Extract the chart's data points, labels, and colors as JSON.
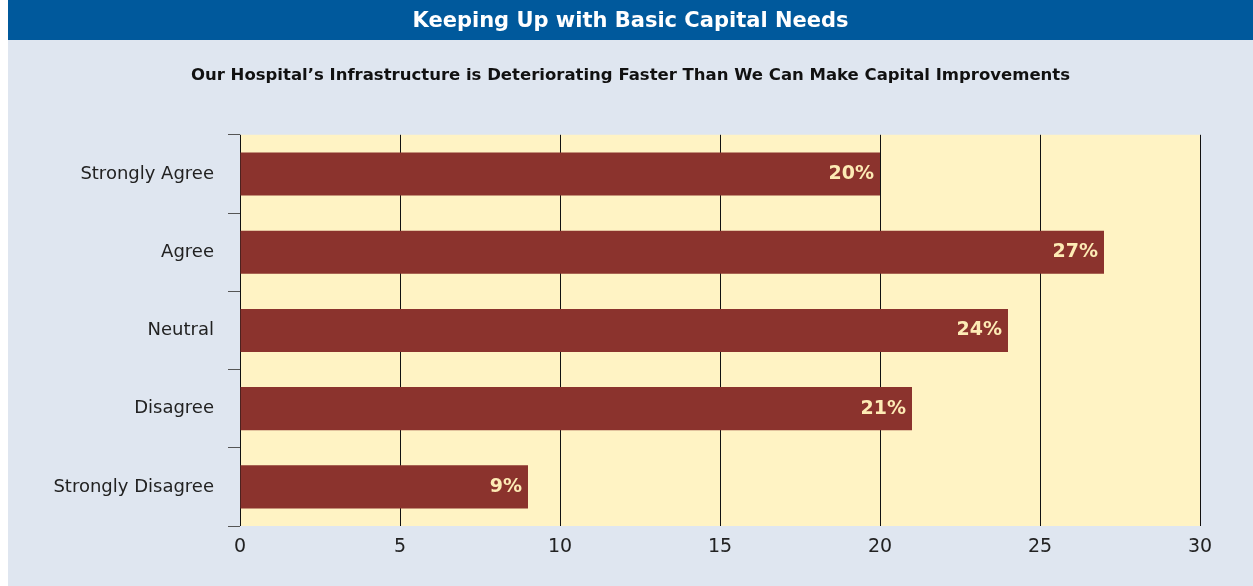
{
  "chart_data": {
    "type": "bar",
    "orientation": "horizontal",
    "title": "Keeping Up with Basic Capital Needs",
    "subtitle": "Our Hospital’s Infrastructure is Deteriorating Faster Than We Can Make Capital Improvements",
    "categories": [
      "Strongly Agree",
      "Agree",
      "Neutral",
      "Disagree",
      "Strongly Disagree"
    ],
    "values": [
      20,
      27,
      24,
      21,
      9
    ],
    "value_labels": [
      "20%",
      "27%",
      "24%",
      "21%",
      "9%"
    ],
    "color": "#8b332d",
    "xlim": [
      0,
      30
    ],
    "xticks": [
      0,
      5,
      10,
      15,
      20,
      25,
      30
    ],
    "grid": "x",
    "legend": false
  }
}
